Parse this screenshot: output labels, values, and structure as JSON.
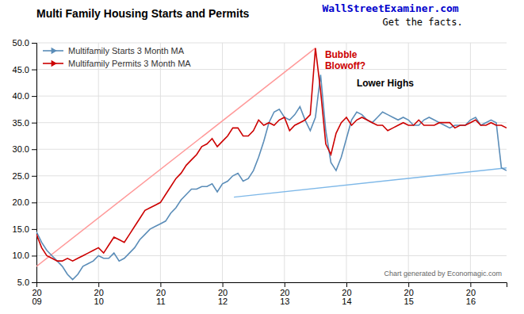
{
  "chart_data": {
    "type": "line",
    "title": "Multi Family Housing Starts and Permits",
    "categories": [
      "20\n09",
      null,
      null,
      null,
      null,
      null,
      null,
      null,
      null,
      null,
      null,
      null,
      "20\n10",
      null,
      null,
      null,
      null,
      null,
      null,
      null,
      null,
      null,
      null,
      null,
      "20\n11",
      null,
      null,
      null,
      null,
      null,
      null,
      null,
      null,
      null,
      null,
      null,
      "20\n12",
      null,
      null,
      null,
      null,
      null,
      null,
      null,
      null,
      null,
      null,
      null,
      "20\n13",
      null,
      null,
      null,
      null,
      null,
      null,
      null,
      null,
      null,
      null,
      null,
      "20\n14",
      null,
      null,
      null,
      null,
      null,
      null,
      null,
      null,
      null,
      null,
      null,
      "20\n15",
      null,
      null,
      null,
      null,
      null,
      null,
      null,
      null,
      null,
      null,
      null,
      "20\n16",
      null,
      null,
      null,
      null,
      null,
      null,
      null
    ],
    "series": [
      {
        "name": "Multifamily Starts 3 Month MA",
        "color": "#5B8DB8",
        "values": [
          14.5,
          12.5,
          11.0,
          10.0,
          9.0,
          8.0,
          6.5,
          5.5,
          6.5,
          8.0,
          8.5,
          9.0,
          10.0,
          9.5,
          9.5,
          10.5,
          9.0,
          9.5,
          10.5,
          11.5,
          13.0,
          14.0,
          15.0,
          15.5,
          16.0,
          16.5,
          18.0,
          19.0,
          20.5,
          21.5,
          22.5,
          22.5,
          23.0,
          23.0,
          23.5,
          22.0,
          23.5,
          24.0,
          25.0,
          25.5,
          24.0,
          24.5,
          26.0,
          28.5,
          31.5,
          35.0,
          37.0,
          37.5,
          36.0,
          35.5,
          36.5,
          38.0,
          35.5,
          33.5,
          36.0,
          44.0,
          33.5,
          27.5,
          26.0,
          28.5,
          32.0,
          35.5,
          37.0,
          36.5,
          35.5,
          35.0,
          36.0,
          37.0,
          36.5,
          36.0,
          35.5,
          36.0,
          35.5,
          34.5,
          34.5,
          35.5,
          36.0,
          35.5,
          35.0,
          34.5,
          34.0,
          34.5,
          34.5,
          34.5,
          35.5,
          36.0,
          34.5,
          35.0,
          35.5,
          35.0,
          26.5,
          26.0
        ]
      },
      {
        "name": "Multifamily Permits 3 Month MA",
        "color": "#CC0000",
        "values": [
          14.0,
          11.5,
          10.0,
          9.5,
          9.0,
          9.0,
          9.5,
          9.0,
          9.5,
          10.0,
          10.5,
          11.0,
          11.5,
          10.5,
          12.0,
          13.5,
          13.0,
          12.5,
          14.0,
          15.5,
          17.0,
          18.5,
          19.0,
          19.5,
          20.0,
          21.5,
          23.0,
          24.5,
          25.5,
          27.0,
          28.0,
          29.0,
          30.5,
          31.0,
          32.0,
          30.5,
          31.5,
          32.5,
          34.0,
          34.0,
          32.5,
          32.5,
          33.5,
          35.5,
          34.5,
          35.0,
          34.5,
          35.5,
          36.0,
          33.5,
          34.5,
          35.0,
          35.5,
          36.5,
          49.0,
          41.0,
          31.0,
          29.0,
          33.0,
          35.0,
          36.0,
          34.5,
          35.5,
          36.0,
          35.5,
          35.0,
          34.5,
          34.5,
          33.5,
          34.0,
          34.5,
          35.0,
          34.5,
          34.5,
          35.5,
          34.5,
          34.5,
          34.5,
          35.0,
          35.0,
          35.0,
          34.0,
          34.5,
          34.5,
          35.0,
          35.5,
          34.5,
          34.5,
          35.0,
          34.5,
          34.5,
          34.0
        ]
      }
    ],
    "trend_lines": [
      {
        "x": [
          38.22,
          91
        ],
        "y": [
          21.0,
          26.5
        ],
        "color": "#7EB8E8"
      },
      {
        "x": [
          0,
          54
        ],
        "y": [
          8.0,
          49.0
        ],
        "color": "#FF9999"
      }
    ],
    "annotations": [
      {
        "text": "Bubble\nBlowoff?",
        "color": "#CC0000"
      },
      {
        "text": "Lower Highs",
        "color": "#000000"
      },
      {
        "text": "WallStreetExaminer.com",
        "color": "#0000CC"
      },
      {
        "text": "Get the facts.",
        "color": "#000000"
      },
      {
        "text": "Chart generated by Economagic.com",
        "color": "#666666"
      }
    ],
    "ylim": [
      5.0,
      50.0
    ],
    "yticks": [
      {
        "value": 5.0,
        "label": "5.0"
      },
      {
        "value": 10.0,
        "label": "10.0"
      },
      {
        "value": 15.0,
        "label": "15.0"
      },
      {
        "value": 20.0,
        "label": "20.0"
      },
      {
        "value": 25.0,
        "label": "25.0"
      },
      {
        "value": 30.0,
        "label": "30.0"
      },
      {
        "value": 35.0,
        "label": "35.0"
      },
      {
        "value": 40.0,
        "label": "40.0"
      },
      {
        "value": 45.0,
        "label": "45.0"
      },
      {
        "value": 50.0,
        "label": "50.0"
      }
    ],
    "grid": true,
    "legend": "upper left"
  }
}
